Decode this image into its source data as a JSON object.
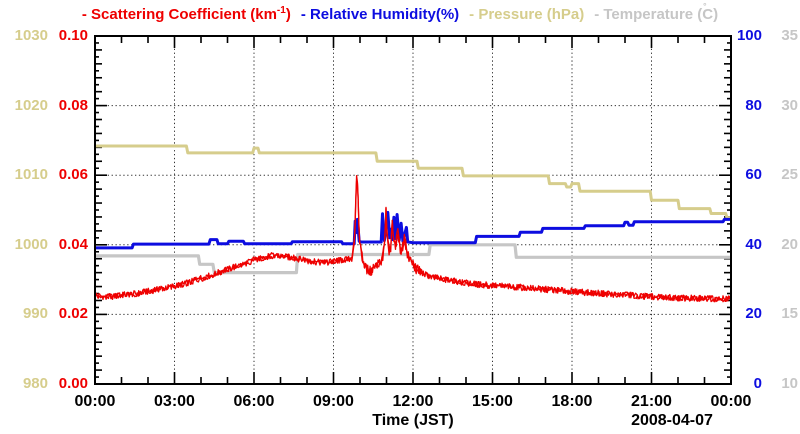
{
  "chart": {
    "xlabel": "Time (JST)",
    "date_label": "2008-04-07",
    "background": "#ffffff",
    "legend_items": [
      {
        "name": "scattering-coefficient",
        "color": "#ee0000",
        "segments": [
          {
            "text": "- Scattering Coefficient (km"
          },
          {
            "text": "-1",
            "style": "sup"
          },
          {
            "text": ")"
          }
        ]
      },
      {
        "name": "relative-humidity",
        "color": "#0d0de0",
        "segments": [
          {
            "text": "- Relative Humidity(%)"
          }
        ]
      },
      {
        "name": "pressure",
        "color": "#d6cd8c",
        "segments": [
          {
            "text": "- Pressure (hPa)"
          }
        ]
      },
      {
        "name": "temperature",
        "color": "#c6c6c6",
        "segments": [
          {
            "text": "- Temperature ("
          },
          {
            "text": "˚",
            "style": "ring"
          },
          {
            "text": "C)"
          }
        ]
      }
    ]
  },
  "chart_data": {
    "type": "line",
    "title": "",
    "date": "2008-04-07",
    "grid": {
      "style": "dotted",
      "color": "#333333",
      "on_major_ticks": true
    },
    "x_axis": {
      "label": "Time (JST)",
      "range_hours": [
        0,
        24
      ],
      "major_tick_every_hours": 3,
      "minor_tick_every_hours": 1,
      "tick_labels": [
        "00:00",
        "03:00",
        "06:00",
        "09:00",
        "12:00",
        "15:00",
        "18:00",
        "21:00",
        "00:00"
      ]
    },
    "y_axes": [
      {
        "id": "scattering",
        "label": "Scattering Coefficient (km-1)",
        "side": "left-inner",
        "color": "#ee0000",
        "range": [
          0,
          0.1
        ],
        "tick_labels": [
          "0.10",
          "0.08",
          "0.06",
          "0.04",
          "0.02",
          "0.00"
        ],
        "minor_tick_step": 0.002,
        "semi_tick_step": 0.004,
        "major_tick_step": 0.02
      },
      {
        "id": "humidity",
        "label": "Relative Humidity(%)",
        "side": "right-inner",
        "color": "#0d0de0",
        "range": [
          0,
          100
        ],
        "tick_labels": [
          "100",
          "80",
          "60",
          "40",
          "20",
          "0"
        ]
      },
      {
        "id": "pressure",
        "label": "Pressure (hPa)",
        "side": "left-outer",
        "color": "#d6cd8c",
        "range": [
          980,
          1030
        ],
        "tick_labels": [
          "1030",
          "1020",
          "1010",
          "1000",
          "990",
          "980"
        ]
      },
      {
        "id": "temperature",
        "label": "Temperature (C)",
        "side": "right-outer",
        "color": "#c6c6c6",
        "range": [
          10,
          35
        ],
        "tick_labels": [
          "35",
          "30",
          "25",
          "20",
          "15",
          "10"
        ]
      }
    ],
    "series": [
      {
        "name": "Pressure",
        "axis": "pressure",
        "style": "line",
        "color": "#d6cd8c",
        "width": 3,
        "points": [
          [
            0,
            1014.2
          ],
          [
            3.45,
            1014.2
          ],
          [
            3.5,
            1013.2
          ],
          [
            5.95,
            1013.2
          ],
          [
            6.0,
            1013.9
          ],
          [
            6.15,
            1013.9
          ],
          [
            6.2,
            1013.2
          ],
          [
            10.6,
            1013.2
          ],
          [
            10.65,
            1012.0
          ],
          [
            12.15,
            1012.0
          ],
          [
            12.2,
            1011.0
          ],
          [
            13.85,
            1011.0
          ],
          [
            13.9,
            1009.9
          ],
          [
            17.1,
            1009.9
          ],
          [
            17.15,
            1008.8
          ],
          [
            17.75,
            1008.8
          ],
          [
            17.8,
            1008.3
          ],
          [
            17.95,
            1008.3
          ],
          [
            18.0,
            1008.8
          ],
          [
            18.25,
            1008.8
          ],
          [
            18.3,
            1007.7
          ],
          [
            20.95,
            1007.7
          ],
          [
            21.0,
            1006.4
          ],
          [
            22.0,
            1006.4
          ],
          [
            22.05,
            1005.2
          ],
          [
            23.2,
            1005.2
          ],
          [
            23.25,
            1004.5
          ],
          [
            23.8,
            1004.5
          ],
          [
            23.85,
            1003.9
          ],
          [
            24,
            1003.9
          ]
        ]
      },
      {
        "name": "Temperature",
        "axis": "temperature",
        "style": "line",
        "color": "#c6c6c6",
        "width": 3.2,
        "points": [
          [
            0,
            19.2
          ],
          [
            3.9,
            19.2
          ],
          [
            3.95,
            18.6
          ],
          [
            4.45,
            18.6
          ],
          [
            4.5,
            18.0
          ],
          [
            7.6,
            18.0
          ],
          [
            7.65,
            19.3
          ],
          [
            12.6,
            19.3
          ],
          [
            12.65,
            20.0
          ],
          [
            15.85,
            20.0
          ],
          [
            15.9,
            19.1
          ],
          [
            24,
            19.1
          ]
        ]
      },
      {
        "name": "Relative Humidity",
        "axis": "humidity",
        "style": "line",
        "color": "#0d0de0",
        "width": 3,
        "points": [
          [
            0,
            39.1
          ],
          [
            1.4,
            39.1
          ],
          [
            1.45,
            40.2
          ],
          [
            4.3,
            40.2
          ],
          [
            4.35,
            41.5
          ],
          [
            4.6,
            41.5
          ],
          [
            4.65,
            40.3
          ],
          [
            5.0,
            40.3
          ],
          [
            5.05,
            41.0
          ],
          [
            5.6,
            41.0
          ],
          [
            5.65,
            40.3
          ],
          [
            7.4,
            40.3
          ],
          [
            7.45,
            40.9
          ],
          [
            9.3,
            40.9
          ],
          [
            9.35,
            40.3
          ],
          [
            9.78,
            40.3
          ],
          [
            9.82,
            46.8
          ],
          [
            9.86,
            43.5
          ],
          [
            9.9,
            47.3
          ],
          [
            9.97,
            41.0
          ],
          [
            10.05,
            40.8
          ],
          [
            10.8,
            40.8
          ],
          [
            10.85,
            48.9
          ],
          [
            10.92,
            41.2
          ],
          [
            11.05,
            49.3
          ],
          [
            11.12,
            42.0
          ],
          [
            11.18,
            44.5
          ],
          [
            11.22,
            41.5
          ],
          [
            11.28,
            47.9
          ],
          [
            11.33,
            41.8
          ],
          [
            11.4,
            48.7
          ],
          [
            11.48,
            41.3
          ],
          [
            11.55,
            46.2
          ],
          [
            11.62,
            41.0
          ],
          [
            11.75,
            45.0
          ],
          [
            11.8,
            40.8
          ],
          [
            12.0,
            40.6
          ],
          [
            14.35,
            40.6
          ],
          [
            14.4,
            42.4
          ],
          [
            16.0,
            42.4
          ],
          [
            16.05,
            43.6
          ],
          [
            16.85,
            43.6
          ],
          [
            16.9,
            44.7
          ],
          [
            18.45,
            44.7
          ],
          [
            18.5,
            45.5
          ],
          [
            19.95,
            45.5
          ],
          [
            20.0,
            46.5
          ],
          [
            20.1,
            46.5
          ],
          [
            20.15,
            45.6
          ],
          [
            20.3,
            45.6
          ],
          [
            20.35,
            46.6
          ],
          [
            23.7,
            46.6
          ],
          [
            23.75,
            47.3
          ],
          [
            24,
            47.3
          ]
        ]
      },
      {
        "name": "Scattering Coefficient",
        "axis": "scattering",
        "style": "noisy-line",
        "color": "#ee0000",
        "width": 1.3,
        "noise_amplitude": 0.0009,
        "noise_amplitude_spiky_zone": 0.0016,
        "spiky_zone_hours": [
          9.9,
          12.3
        ],
        "points": [
          [
            0,
            0.0256
          ],
          [
            0.4,
            0.025
          ],
          [
            0.8,
            0.0252
          ],
          [
            1.2,
            0.0257
          ],
          [
            1.6,
            0.026
          ],
          [
            2.0,
            0.0266
          ],
          [
            2.4,
            0.0272
          ],
          [
            2.8,
            0.0278
          ],
          [
            3.2,
            0.0285
          ],
          [
            3.6,
            0.0293
          ],
          [
            4.0,
            0.0303
          ],
          [
            4.4,
            0.0313
          ],
          [
            4.8,
            0.0324
          ],
          [
            5.2,
            0.0334
          ],
          [
            5.6,
            0.0345
          ],
          [
            6.0,
            0.0356
          ],
          [
            6.4,
            0.0364
          ],
          [
            6.8,
            0.0371
          ],
          [
            7.0,
            0.0368
          ],
          [
            7.4,
            0.0363
          ],
          [
            7.8,
            0.0358
          ],
          [
            8.2,
            0.0352
          ],
          [
            8.6,
            0.0348
          ],
          [
            9.0,
            0.0352
          ],
          [
            9.4,
            0.0357
          ],
          [
            9.7,
            0.036
          ],
          [
            9.8,
            0.042
          ],
          [
            9.84,
            0.053
          ],
          [
            9.88,
            0.061
          ],
          [
            9.92,
            0.056
          ],
          [
            9.96,
            0.0455
          ],
          [
            10.0,
            0.04
          ],
          [
            10.05,
            0.0375
          ],
          [
            10.15,
            0.035
          ],
          [
            10.25,
            0.033
          ],
          [
            10.4,
            0.0322
          ],
          [
            10.55,
            0.0335
          ],
          [
            10.7,
            0.0345
          ],
          [
            10.85,
            0.036
          ],
          [
            10.95,
            0.044
          ],
          [
            10.98,
            0.0492
          ],
          [
            11.02,
            0.043
          ],
          [
            11.08,
            0.039
          ],
          [
            11.15,
            0.0378
          ],
          [
            11.22,
            0.0455
          ],
          [
            11.28,
            0.0405
          ],
          [
            11.35,
            0.0398
          ],
          [
            11.42,
            0.0437
          ],
          [
            11.5,
            0.039
          ],
          [
            11.58,
            0.0382
          ],
          [
            11.68,
            0.0424
          ],
          [
            11.78,
            0.037
          ],
          [
            11.9,
            0.0355
          ],
          [
            12.0,
            0.034
          ],
          [
            12.2,
            0.0325
          ],
          [
            12.5,
            0.0313
          ],
          [
            12.8,
            0.0306
          ],
          [
            13.1,
            0.0301
          ],
          [
            13.5,
            0.0296
          ],
          [
            14.0,
            0.029
          ],
          [
            14.5,
            0.0286
          ],
          [
            15.0,
            0.0283
          ],
          [
            15.5,
            0.028
          ],
          [
            16.0,
            0.0278
          ],
          [
            16.5,
            0.0275
          ],
          [
            17.0,
            0.0272
          ],
          [
            17.5,
            0.0269
          ],
          [
            18.0,
            0.0266
          ],
          [
            18.5,
            0.0263
          ],
          [
            19.0,
            0.0261
          ],
          [
            19.5,
            0.0258
          ],
          [
            20.0,
            0.0256
          ],
          [
            20.5,
            0.0253
          ],
          [
            21.0,
            0.0251
          ],
          [
            21.5,
            0.0249
          ],
          [
            22.0,
            0.0247
          ],
          [
            22.5,
            0.0246
          ],
          [
            23.0,
            0.0246
          ],
          [
            23.5,
            0.0245
          ],
          [
            24,
            0.0246
          ]
        ]
      }
    ]
  }
}
